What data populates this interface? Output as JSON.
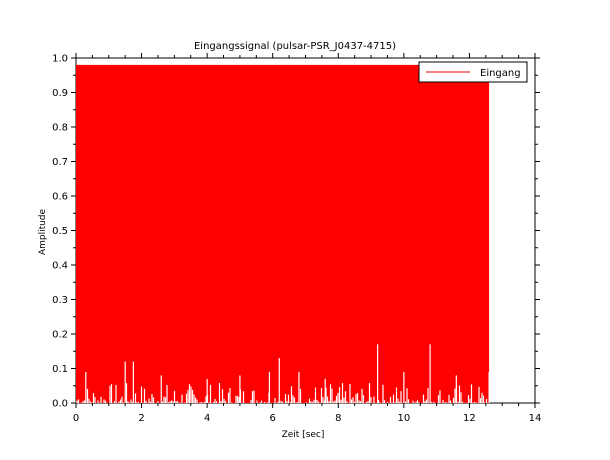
{
  "chart_data": {
    "type": "area",
    "title": "Eingangssignal (pulsar-PSR_J0437-4715)",
    "xlabel": "Zeit [sec]",
    "ylabel": "Amplitude",
    "xlim": [
      0,
      14
    ],
    "ylim": [
      0,
      1.0
    ],
    "xticks": [
      0,
      2,
      4,
      6,
      8,
      10,
      12,
      14
    ],
    "yticks": [
      0.0,
      0.1,
      0.2,
      0.3,
      0.4,
      0.5,
      0.6,
      0.7,
      0.8,
      0.9,
      1.0
    ],
    "grid": false,
    "legend_position": "top-right",
    "series": [
      {
        "name": "Eingang",
        "color": "#ff0000",
        "x_range": [
          0,
          12.6
        ],
        "max_amplitude": 0.98,
        "sample_dips": [
          {
            "x": 0.3,
            "y": 0.09
          },
          {
            "x": 1.5,
            "y": 0.12
          },
          {
            "x": 1.75,
            "y": 0.12
          },
          {
            "x": 2.6,
            "y": 0.08
          },
          {
            "x": 4.0,
            "y": 0.07
          },
          {
            "x": 5.0,
            "y": 0.08
          },
          {
            "x": 5.9,
            "y": 0.09
          },
          {
            "x": 6.2,
            "y": 0.13
          },
          {
            "x": 6.8,
            "y": 0.09
          },
          {
            "x": 7.6,
            "y": 0.07
          },
          {
            "x": 9.2,
            "y": 0.17
          },
          {
            "x": 10.0,
            "y": 0.09
          },
          {
            "x": 10.8,
            "y": 0.17
          },
          {
            "x": 11.6,
            "y": 0.08
          },
          {
            "x": 12.6,
            "y": 0.09
          }
        ]
      }
    ]
  }
}
